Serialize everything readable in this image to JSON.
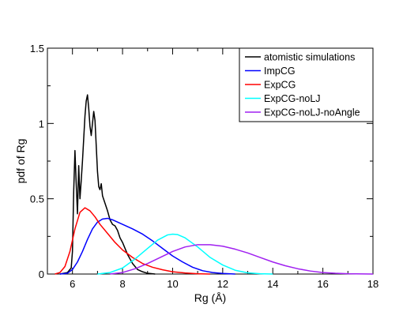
{
  "chart_data": {
    "type": "line",
    "title": "",
    "xlabel": "Rg (Å)",
    "ylabel": "pdf of Rg",
    "xlim": [
      5,
      18
    ],
    "ylim": [
      0,
      1.5
    ],
    "x_ticks": [
      6,
      8,
      10,
      12,
      14,
      16,
      18
    ],
    "x_tick_labels": [
      "6",
      "8",
      "10",
      "12",
      "14",
      "16",
      "18"
    ],
    "y_ticks": [
      0,
      0.5,
      1,
      1.5
    ],
    "y_tick_labels": [
      "0",
      "0.5",
      "1",
      "1.5"
    ],
    "grid": false,
    "legend_position": "top-right",
    "series": [
      {
        "name": "atomistic simulations",
        "color": "#000000",
        "points": [
          [
            5.5,
            0
          ],
          [
            5.8,
            0.01
          ],
          [
            5.95,
            0.04
          ],
          [
            6.0,
            0.15
          ],
          [
            6.05,
            0.55
          ],
          [
            6.1,
            0.82
          ],
          [
            6.15,
            0.6
          ],
          [
            6.2,
            0.4
          ],
          [
            6.25,
            0.72
          ],
          [
            6.3,
            0.5
          ],
          [
            6.35,
            0.62
          ],
          [
            6.4,
            0.75
          ],
          [
            6.45,
            0.9
          ],
          [
            6.5,
            1.05
          ],
          [
            6.55,
            1.15
          ],
          [
            6.6,
            1.19
          ],
          [
            6.65,
            1.1
          ],
          [
            6.7,
            0.98
          ],
          [
            6.75,
            0.92
          ],
          [
            6.8,
            1.0
          ],
          [
            6.85,
            1.08
          ],
          [
            6.9,
            1.02
          ],
          [
            6.95,
            0.85
          ],
          [
            7.0,
            0.68
          ],
          [
            7.05,
            0.58
          ],
          [
            7.1,
            0.56
          ],
          [
            7.15,
            0.6
          ],
          [
            7.2,
            0.52
          ],
          [
            7.3,
            0.47
          ],
          [
            7.4,
            0.42
          ],
          [
            7.5,
            0.36
          ],
          [
            7.6,
            0.33
          ],
          [
            7.7,
            0.32
          ],
          [
            7.8,
            0.29
          ],
          [
            7.9,
            0.24
          ],
          [
            8.0,
            0.21
          ],
          [
            8.1,
            0.17
          ],
          [
            8.2,
            0.13
          ],
          [
            8.3,
            0.1
          ],
          [
            8.4,
            0.07
          ],
          [
            8.5,
            0.05
          ],
          [
            8.6,
            0.03
          ],
          [
            8.8,
            0.015
          ],
          [
            9.0,
            0.005
          ],
          [
            9.3,
            0.0
          ]
        ]
      },
      {
        "name": "ImpCG",
        "color": "#0000ff",
        "points": [
          [
            5.5,
            0.0
          ],
          [
            5.8,
            0.005
          ],
          [
            6.0,
            0.03
          ],
          [
            6.2,
            0.08
          ],
          [
            6.4,
            0.15
          ],
          [
            6.6,
            0.23
          ],
          [
            6.8,
            0.3
          ],
          [
            7.0,
            0.345
          ],
          [
            7.2,
            0.365
          ],
          [
            7.4,
            0.37
          ],
          [
            7.6,
            0.36
          ],
          [
            7.8,
            0.345
          ],
          [
            8.0,
            0.33
          ],
          [
            8.4,
            0.3
          ],
          [
            8.8,
            0.265
          ],
          [
            9.2,
            0.22
          ],
          [
            9.6,
            0.17
          ],
          [
            10.0,
            0.12
          ],
          [
            10.4,
            0.08
          ],
          [
            10.8,
            0.045
          ],
          [
            11.2,
            0.022
          ],
          [
            11.6,
            0.01
          ],
          [
            12.0,
            0.004
          ],
          [
            12.5,
            0.0
          ]
        ]
      },
      {
        "name": "ExpCG",
        "color": "#ff0000",
        "points": [
          [
            5.3,
            0.0
          ],
          [
            5.5,
            0.01
          ],
          [
            5.7,
            0.05
          ],
          [
            5.9,
            0.15
          ],
          [
            6.1,
            0.3
          ],
          [
            6.3,
            0.41
          ],
          [
            6.5,
            0.44
          ],
          [
            6.7,
            0.42
          ],
          [
            6.9,
            0.38
          ],
          [
            7.1,
            0.33
          ],
          [
            7.4,
            0.27
          ],
          [
            7.7,
            0.21
          ],
          [
            8.0,
            0.16
          ],
          [
            8.4,
            0.11
          ],
          [
            8.8,
            0.07
          ],
          [
            9.2,
            0.045
          ],
          [
            9.6,
            0.028
          ],
          [
            10.0,
            0.015
          ],
          [
            10.5,
            0.007
          ],
          [
            11.0,
            0.002
          ],
          [
            11.5,
            0.0
          ]
        ]
      },
      {
        "name": "ExpCG-noLJ",
        "color": "#00ffff",
        "points": [
          [
            7.0,
            0.0
          ],
          [
            7.5,
            0.01
          ],
          [
            8.0,
            0.04
          ],
          [
            8.5,
            0.1
          ],
          [
            9.0,
            0.17
          ],
          [
            9.4,
            0.225
          ],
          [
            9.8,
            0.26
          ],
          [
            10.0,
            0.265
          ],
          [
            10.2,
            0.262
          ],
          [
            10.5,
            0.24
          ],
          [
            11.0,
            0.18
          ],
          [
            11.5,
            0.11
          ],
          [
            12.0,
            0.06
          ],
          [
            12.5,
            0.025
          ],
          [
            13.0,
            0.008
          ],
          [
            13.5,
            0.002
          ],
          [
            14.0,
            0.0
          ]
        ]
      },
      {
        "name": "ExpCG-noLJ-noAngle",
        "color": "#a020f0",
        "points": [
          [
            7.5,
            0.0
          ],
          [
            8.0,
            0.01
          ],
          [
            8.5,
            0.035
          ],
          [
            9.0,
            0.07
          ],
          [
            9.5,
            0.11
          ],
          [
            10.0,
            0.15
          ],
          [
            10.5,
            0.18
          ],
          [
            11.0,
            0.195
          ],
          [
            11.5,
            0.195
          ],
          [
            12.0,
            0.185
          ],
          [
            12.5,
            0.165
          ],
          [
            13.0,
            0.14
          ],
          [
            13.5,
            0.11
          ],
          [
            14.0,
            0.08
          ],
          [
            14.5,
            0.055
          ],
          [
            15.0,
            0.035
          ],
          [
            15.5,
            0.02
          ],
          [
            16.0,
            0.01
          ],
          [
            16.5,
            0.005
          ],
          [
            17.0,
            0.002
          ],
          [
            18.0,
            0.0
          ]
        ]
      }
    ]
  }
}
